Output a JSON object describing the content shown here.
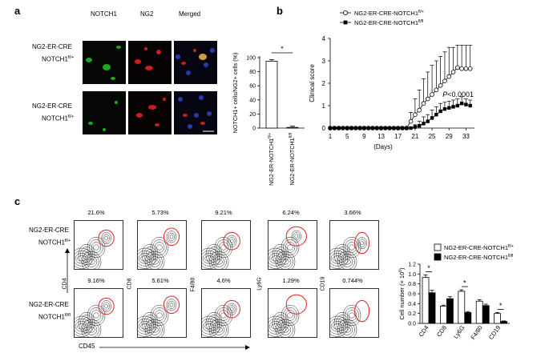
{
  "panels": {
    "a": "a",
    "b": "b",
    "c": "c"
  },
  "panel_a": {
    "columns": [
      "NOTCH1",
      "NG2",
      "Merged"
    ],
    "row1_label": {
      "line1": "NG2-ER-CRE",
      "line2": "NOTCH1",
      "sup": "fl/+"
    },
    "row2_label": {
      "line1": "NG2-ER-CRE",
      "line2": "NOTCH1",
      "sup": "fl/+"
    }
  },
  "chart_data": [
    {
      "type": "bar",
      "id": "a-bar",
      "categories": [
        "NG2-ER-NOTCH1fl/+",
        "NG2-ER-NOTCH1fl/fl"
      ],
      "category_base": [
        "NG2-ER-NOTCH1",
        "NG2-ER-NOTCH1"
      ],
      "category_sup": [
        "fl/+",
        "fl/fl"
      ],
      "values": [
        95,
        1
      ],
      "errors": [
        1,
        0.5
      ],
      "ylabel": "NOTCH1+ cells/NG2+ cells (%)",
      "yticks": [
        "0",
        "20",
        "40",
        "60",
        "80",
        "100"
      ],
      "ylim": [
        0,
        100
      ],
      "significance": "*"
    },
    {
      "type": "line",
      "id": "b-line",
      "title": "",
      "xlabel": "(Days)",
      "ylabel": "Clinical score",
      "xticks": [
        "1",
        "5",
        "9",
        "13",
        "17",
        "21",
        "25",
        "29",
        "33"
      ],
      "yticks": [
        "0",
        "1",
        "2",
        "3",
        "4"
      ],
      "xlim": [
        1,
        35
      ],
      "ylim": [
        0,
        4
      ],
      "x": [
        1,
        2,
        3,
        4,
        5,
        6,
        7,
        8,
        9,
        10,
        11,
        12,
        13,
        14,
        15,
        16,
        17,
        18,
        19,
        20,
        21,
        22,
        23,
        24,
        25,
        26,
        27,
        28,
        29,
        30,
        31,
        32,
        33,
        34
      ],
      "series": [
        {
          "name": "NG2-ER-CRE-NOTCH1",
          "sup": "fl/+",
          "marker": "circle-open",
          "values": [
            0,
            0,
            0,
            0,
            0,
            0,
            0,
            0,
            0,
            0,
            0,
            0,
            0,
            0,
            0,
            0,
            0,
            0,
            0,
            0.3,
            0.6,
            0.8,
            1.1,
            1.3,
            1.5,
            1.7,
            1.9,
            2.1,
            2.3,
            2.5,
            2.7,
            2.65,
            2.65,
            2.65
          ],
          "errors": [
            0,
            0,
            0,
            0,
            0,
            0,
            0,
            0,
            0,
            0,
            0,
            0,
            0,
            0,
            0,
            0,
            0,
            0,
            0,
            0.4,
            0.7,
            0.9,
            1.1,
            1.2,
            1.3,
            1.3,
            1.3,
            1.3,
            1.3,
            1.1,
            1.0,
            1.05,
            1.05,
            1.05
          ]
        },
        {
          "name": "NG2-ER-CRE-NOTCH1",
          "sup": "fl/fl",
          "marker": "square-filled",
          "values": [
            0,
            0,
            0,
            0,
            0,
            0,
            0,
            0,
            0,
            0,
            0,
            0,
            0,
            0,
            0,
            0,
            0,
            0,
            0,
            0,
            0.05,
            0.1,
            0.2,
            0.3,
            0.45,
            0.6,
            0.75,
            0.85,
            0.9,
            0.95,
            1.0,
            1.1,
            1.05,
            1.0
          ],
          "errors": [
            0,
            0,
            0,
            0,
            0,
            0,
            0,
            0,
            0,
            0,
            0,
            0,
            0,
            0,
            0,
            0,
            0,
            0,
            0,
            0,
            0.1,
            0.2,
            0.3,
            0.3,
            0.35,
            0.35,
            0.35,
            0.3,
            0.3,
            0.3,
            0.3,
            0.3,
            0.25,
            0.25
          ]
        }
      ],
      "annotation": {
        "italic": "P",
        "rest": "<0.0001"
      }
    },
    {
      "type": "bar",
      "id": "c-bar",
      "ylabel": "Cell number (× 10",
      "ylabel_exp": "6",
      "ylabel_close": ")",
      "categories": [
        "CD4",
        "CD8",
        "Ly6G",
        "F4/80",
        "CD19"
      ],
      "yticks": [
        "0.0",
        "0.2",
        "0.4",
        "0.6",
        "0.8",
        "1.0",
        "1.2"
      ],
      "ylim": [
        0,
        1.2
      ],
      "series": [
        {
          "name": "NG2-ER-CRE-NOTCH1",
          "sup": "fl/+",
          "fill": "#ffffff",
          "values": [
            0.93,
            0.35,
            0.65,
            0.45,
            0.2
          ],
          "errors": [
            0.05,
            0.02,
            0.03,
            0.03,
            0.02
          ]
        },
        {
          "name": "NG2-ER-CRE-NOTCH1",
          "sup": "fl/fl",
          "fill": "#000000",
          "values": [
            0.62,
            0.5,
            0.22,
            0.36,
            0.04
          ],
          "errors": [
            0.05,
            0.04,
            0.02,
            0.03,
            0.01
          ]
        }
      ],
      "significance": [
        "*",
        "",
        "*",
        "",
        "*"
      ]
    }
  ],
  "panel_c": {
    "row1_label": {
      "line1": "NG2-ER-CRE",
      "line2": "NOTCH1",
      "sup": "fl/+"
    },
    "row2_label": {
      "line1": "NG2-ER-CRE",
      "line2": "NOTCH1",
      "sup": "fl/fl"
    },
    "markers": [
      "CD4",
      "CD8",
      "F4/80",
      "Ly6G",
      "CD19"
    ],
    "row1_pct": [
      "21.6%",
      "5.73%",
      "9.21%",
      "6.24%",
      "3.66%"
    ],
    "row2_pct": [
      "9.16%",
      "5.61%",
      "4.6%",
      "1.29%",
      "0.744%"
    ],
    "xaxis": "CD45"
  },
  "colors": {
    "gate": "#e02020",
    "green": "#1fa81f",
    "red": "#c81e1e",
    "blue": "#2a3aa8"
  }
}
